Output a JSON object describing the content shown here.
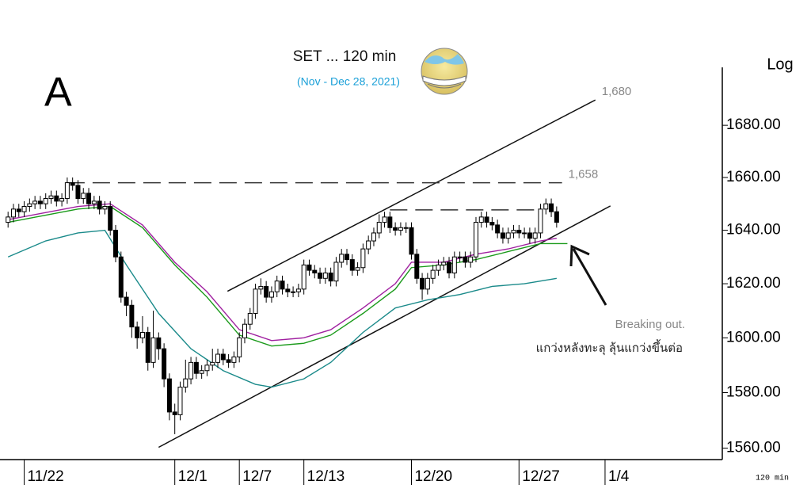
{
  "chart_data": {
    "type": "candlestick",
    "panel_label": "A",
    "title": "SET ... 120 min",
    "subtitle": "(Nov - Dec 28, 2021)",
    "scale_label": "Log",
    "interval_label": "120 min",
    "annotations": [
      {
        "text": "Breaking out."
      },
      {
        "text": "แกว่งหลังทะลุ ลุ้นแกว่งขึ้นต่อ"
      }
    ],
    "log_scale": true,
    "up_color": "#ffffff",
    "down_color": "#000000",
    "x": [
      0,
      1,
      2,
      3,
      4,
      5,
      6,
      7,
      8,
      9,
      10,
      11,
      12,
      13,
      14,
      15,
      16,
      17,
      18,
      19,
      20,
      21,
      22,
      23,
      24,
      25,
      26,
      27,
      28,
      29,
      30,
      31,
      32,
      33,
      34,
      35,
      36,
      37,
      38,
      39,
      40,
      41,
      42,
      43,
      44,
      45,
      46,
      47,
      48,
      49,
      50,
      51,
      52,
      53,
      54,
      55,
      56,
      57,
      58,
      59,
      60,
      61,
      62,
      63,
      64,
      65,
      66,
      67,
      68,
      69,
      70,
      71,
      72,
      73,
      74,
      75,
      76,
      77,
      78,
      79,
      80,
      81,
      82,
      83,
      84,
      85,
      86,
      87,
      88,
      89,
      90,
      91,
      92,
      93,
      94,
      95,
      96,
      97,
      98,
      99,
      100,
      101,
      102
    ],
    "open": [
      1643,
      1645,
      1648,
      1647,
      1649,
      1650,
      1651,
      1650,
      1652,
      1653,
      1651,
      1652,
      1658,
      1657,
      1652,
      1654,
      1650,
      1651,
      1648,
      1649,
      1640,
      1630,
      1615,
      1612,
      1604,
      1600,
      1602,
      1591,
      1600,
      1596,
      1585,
      1573,
      1572,
      1582,
      1585,
      1591,
      1587,
      1588,
      1590,
      1591,
      1594,
      1592,
      1591,
      1593,
      1600,
      1605,
      1609,
      1618,
      1619,
      1615,
      1617,
      1621,
      1618,
      1617,
      1617,
      1618,
      1627,
      1625,
      1624,
      1622,
      1624,
      1621,
      1628,
      1631,
      1629,
      1625,
      1626,
      1633,
      1636,
      1639,
      1643,
      1645,
      1641,
      1640,
      1641,
      1641,
      1631,
      1622,
      1618,
      1622,
      1625,
      1627,
      1628,
      1624,
      1630,
      1630,
      1628,
      1630,
      1643,
      1645,
      1643,
      1642,
      1639,
      1637,
      1639,
      1640,
      1639,
      1639,
      1637,
      1639,
      1648,
      1650,
      1647
    ],
    "high": [
      1647,
      1650,
      1650,
      1651,
      1652,
      1653,
      1653,
      1654,
      1655,
      1655,
      1654,
      1660,
      1660,
      1659,
      1656,
      1656,
      1653,
      1653,
      1651,
      1651,
      1642,
      1632,
      1617,
      1614,
      1606,
      1608,
      1604,
      1610,
      1602,
      1598,
      1587,
      1576,
      1584,
      1592,
      1593,
      1593,
      1590,
      1592,
      1596,
      1596,
      1596,
      1594,
      1595,
      1602,
      1607,
      1611,
      1620,
      1622,
      1621,
      1619,
      1623,
      1623,
      1620,
      1619,
      1620,
      1629,
      1629,
      1627,
      1626,
      1626,
      1626,
      1630,
      1633,
      1633,
      1631,
      1628,
      1635,
      1638,
      1641,
      1646,
      1647,
      1647,
      1643,
      1643,
      1643,
      1643,
      1633,
      1624,
      1624,
      1627,
      1629,
      1630,
      1630,
      1632,
      1632,
      1632,
      1632,
      1645,
      1647,
      1647,
      1645,
      1644,
      1641,
      1641,
      1642,
      1642,
      1641,
      1641,
      1641,
      1650,
      1652,
      1652,
      1649
    ],
    "low": [
      1641,
      1643,
      1645,
      1645,
      1647,
      1648,
      1648,
      1648,
      1650,
      1649,
      1649,
      1650,
      1655,
      1650,
      1650,
      1648,
      1648,
      1646,
      1646,
      1638,
      1628,
      1613,
      1608,
      1600,
      1596,
      1598,
      1588,
      1589,
      1592,
      1582,
      1570,
      1565,
      1570,
      1580,
      1583,
      1585,
      1585,
      1586,
      1588,
      1589,
      1590,
      1589,
      1589,
      1591,
      1598,
      1603,
      1607,
      1616,
      1613,
      1613,
      1615,
      1616,
      1615,
      1615,
      1615,
      1616,
      1623,
      1622,
      1620,
      1620,
      1619,
      1619,
      1626,
      1627,
      1623,
      1623,
      1624,
      1631,
      1634,
      1637,
      1641,
      1639,
      1638,
      1638,
      1639,
      1629,
      1620,
      1614,
      1616,
      1620,
      1623,
      1625,
      1622,
      1622,
      1628,
      1626,
      1626,
      1628,
      1641,
      1641,
      1640,
      1637,
      1635,
      1635,
      1637,
      1637,
      1637,
      1635,
      1635,
      1637,
      1646,
      1645,
      1641
    ],
    "close": [
      1645,
      1648,
      1647,
      1649,
      1650,
      1651,
      1650,
      1652,
      1653,
      1651,
      1652,
      1658,
      1657,
      1652,
      1654,
      1650,
      1651,
      1648,
      1649,
      1640,
      1630,
      1615,
      1612,
      1604,
      1600,
      1602,
      1591,
      1600,
      1596,
      1585,
      1573,
      1572,
      1582,
      1585,
      1591,
      1587,
      1588,
      1590,
      1591,
      1594,
      1592,
      1591,
      1593,
      1600,
      1605,
      1609,
      1618,
      1619,
      1615,
      1617,
      1621,
      1618,
      1617,
      1617,
      1618,
      1627,
      1625,
      1624,
      1622,
      1624,
      1621,
      1628,
      1631,
      1629,
      1625,
      1626,
      1633,
      1636,
      1639,
      1643,
      1645,
      1641,
      1640,
      1641,
      1641,
      1631,
      1622,
      1618,
      1622,
      1625,
      1627,
      1628,
      1624,
      1630,
      1630,
      1628,
      1630,
      1643,
      1645,
      1643,
      1642,
      1639,
      1637,
      1639,
      1640,
      1639,
      1639,
      1637,
      1639,
      1648,
      1650,
      1647,
      1643
    ],
    "series": [
      {
        "color": "#a020a0",
        "x": [
          0,
          13,
          19,
          25,
          31,
          37,
          43,
          49,
          55,
          60,
          66,
          72,
          75,
          81,
          87,
          93,
          99,
          102
        ],
        "values": [
          1644,
          1649,
          1650,
          1642,
          1628,
          1617,
          1603,
          1599,
          1600,
          1603,
          1611,
          1620,
          1628,
          1628,
          1631,
          1633,
          1636,
          1637
        ]
      },
      {
        "color": "#1a9a1a",
        "x": [
          0,
          13,
          19,
          25,
          31,
          37,
          43,
          49,
          55,
          60,
          66,
          72,
          75,
          81,
          87,
          93,
          99,
          104
        ],
        "values": [
          1643,
          1648,
          1649,
          1641,
          1627,
          1615,
          1601,
          1597,
          1598,
          1601,
          1609,
          1618,
          1626,
          1627,
          1629,
          1632,
          1635,
          1635
        ]
      },
      {
        "color": "#1a8a8a",
        "x": [
          0,
          7,
          13,
          18,
          22,
          28,
          34,
          40,
          46,
          49,
          55,
          60,
          66,
          72,
          78,
          84,
          90,
          96,
          102
        ],
        "values": [
          1630,
          1636,
          1639,
          1640,
          1627,
          1609,
          1596,
          1588,
          1583,
          1582,
          1585,
          1591,
          1602,
          1611,
          1614,
          1616,
          1619,
          1620,
          1622
        ]
      }
    ],
    "lines": [
      {
        "label": "1,680",
        "style": "solid",
        "x": [
          40.8,
          109.2
        ],
        "values": [
          1617.2,
          1689.8
        ]
      },
      {
        "style": "solid",
        "x": [
          28,
          112
        ],
        "values": [
          1560.3,
          1649.2
        ]
      },
      {
        "label": "1,658",
        "style": "dashed",
        "x": [
          11,
          103
        ],
        "values": [
          1658,
          1658
        ]
      },
      {
        "style": "dashed",
        "x": [
          71,
          99
        ],
        "values": [
          1647.7,
          1647.7
        ]
      }
    ],
    "xlim": [
      -1.5,
      132.8
    ],
    "xticks": [
      {
        "value": 3,
        "label": "11/22"
      },
      {
        "value": 31,
        "label": "12/1"
      },
      {
        "value": 43,
        "label": "12/7"
      },
      {
        "value": 55,
        "label": "12/13"
      },
      {
        "value": 75,
        "label": "12/20"
      },
      {
        "value": 95,
        "label": "12/27"
      },
      {
        "value": 111,
        "label": "1/4"
      }
    ],
    "ylim": [
      1555.9,
      1702.5
    ],
    "yticks": [
      {
        "value": 1560,
        "label": "1560.00"
      },
      {
        "value": 1580,
        "label": "1580.00"
      },
      {
        "value": 1600,
        "label": "1600.00"
      },
      {
        "value": 1620,
        "label": "1620.00"
      },
      {
        "value": 1640,
        "label": "1640.00"
      },
      {
        "value": 1660,
        "label": "1660.00"
      },
      {
        "value": 1680,
        "label": "1680.00"
      }
    ]
  }
}
